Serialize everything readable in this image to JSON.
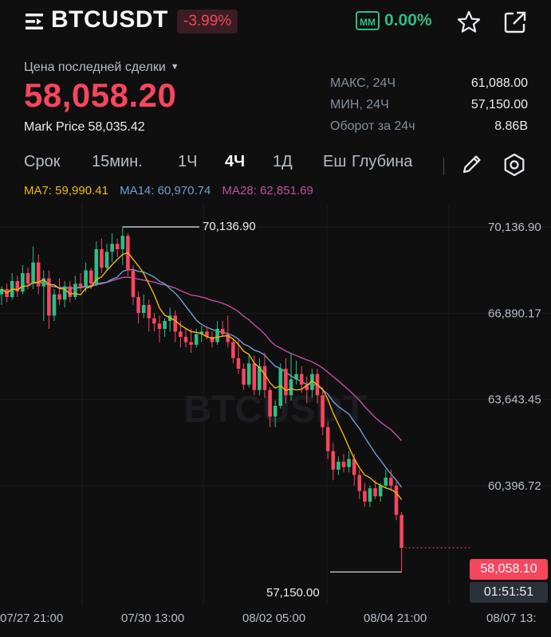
{
  "header": {
    "symbol": "BTCUSDT",
    "change": "-3.99%",
    "mm_badge": "MM",
    "mm_value": "0.00%"
  },
  "price": {
    "last_label": "Цена последней сделки",
    "last_price": "58,058.20",
    "mark_label": "Mark Price",
    "mark_value": "58,035.42"
  },
  "stats": [
    {
      "label": "МАКС, 24Ч",
      "value": "61,088.00"
    },
    {
      "label": "МИН, 24Ч",
      "value": "57,150.00"
    },
    {
      "label": "Оборот за 24ч",
      "value": "8.86B"
    }
  ],
  "timeframes": {
    "period": "Срок",
    "m15": "15мин.",
    "h1": "1Ч",
    "h4": "4Ч",
    "d1": "1Д",
    "more": "Еш",
    "depth": "Глубина",
    "active": "4Ч"
  },
  "ma": {
    "ma7": "MA7: 59,990.41",
    "ma14": "MA14: 60,970.74",
    "ma28": "MA28: 62,851.69",
    "ma7_color": "#f0b90b",
    "ma14_color": "#6c9fd1",
    "ma28_color": "#c2509e"
  },
  "chart": {
    "watermark": "BTCUSDT",
    "y_ticks": [
      "70,136.90",
      "66,890.17",
      "63,643.45",
      "60,396.72"
    ],
    "x_ticks": [
      "07/27 21:00",
      "07/30 13:00",
      "08/02 05:00",
      "08/04 21:00",
      "08/07 13:"
    ],
    "high_annotation": "70,136.90",
    "low_annotation": "57,150.00",
    "current_price": "58,058.10",
    "countdown": "01:51:51"
  },
  "chart_data": {
    "type": "candlestick",
    "ylim": [
      56200,
      71500
    ],
    "candles": [
      [
        67600,
        67900,
        67200,
        67800
      ],
      [
        67800,
        68000,
        67300,
        67500
      ],
      [
        67500,
        68400,
        67400,
        68100
      ],
      [
        68100,
        68300,
        67500,
        67700
      ],
      [
        67700,
        68700,
        67600,
        68400
      ],
      [
        68400,
        68600,
        67800,
        68000
      ],
      [
        68000,
        69400,
        67800,
        68800
      ],
      [
        68800,
        69100,
        67600,
        67900
      ],
      [
        67900,
        68500,
        66600,
        68200
      ],
      [
        68200,
        68500,
        66300,
        66800
      ],
      [
        66800,
        67800,
        66600,
        67600
      ],
      [
        67600,
        68200,
        67200,
        67400
      ],
      [
        67400,
        68100,
        67100,
        67900
      ],
      [
        67900,
        68100,
        67300,
        67500
      ],
      [
        67500,
        68300,
        67400,
        68000
      ],
      [
        68000,
        68400,
        67700,
        67900
      ],
      [
        67900,
        68800,
        67700,
        68500
      ],
      [
        68500,
        68600,
        67800,
        68000
      ],
      [
        68000,
        69600,
        67900,
        69300
      ],
      [
        69300,
        69700,
        68400,
        68600
      ],
      [
        68600,
        69500,
        68500,
        69200
      ],
      [
        69200,
        69900,
        68800,
        69500
      ],
      [
        69500,
        69700,
        69000,
        69300
      ],
      [
        69300,
        70137,
        68700,
        69800
      ],
      [
        69800,
        69900,
        68300,
        68500
      ],
      [
        68500,
        68700,
        67200,
        67500
      ],
      [
        67500,
        67700,
        66500,
        66900
      ],
      [
        66900,
        67600,
        66700,
        67200
      ],
      [
        67200,
        67400,
        66200,
        66700
      ],
      [
        66700,
        66900,
        66200,
        66500
      ],
      [
        66500,
        66800,
        65800,
        66300
      ],
      [
        66300,
        66700,
        66000,
        66600
      ],
      [
        66600,
        67100,
        66200,
        66800
      ],
      [
        66800,
        67000,
        65800,
        66200
      ],
      [
        66200,
        66600,
        65600,
        66000
      ],
      [
        66000,
        66300,
        65600,
        65800
      ],
      [
        65800,
        66300,
        65400,
        65700
      ],
      [
        65700,
        66300,
        65600,
        66100
      ],
      [
        66100,
        66400,
        65800,
        66200
      ],
      [
        66200,
        66400,
        65900,
        66000
      ],
      [
        66000,
        66200,
        65600,
        65800
      ],
      [
        65800,
        66600,
        65700,
        66300
      ],
      [
        66300,
        66600,
        66000,
        66100
      ],
      [
        66100,
        66800,
        65600,
        65800
      ],
      [
        65800,
        65900,
        65000,
        65200
      ],
      [
        65200,
        65900,
        64600,
        64800
      ],
      [
        64800,
        65000,
        64000,
        64200
      ],
      [
        64200,
        65300,
        64100,
        65000
      ],
      [
        65000,
        65300,
        63800,
        64000
      ],
      [
        64000,
        65200,
        63800,
        64900
      ],
      [
        64900,
        65400,
        63700,
        64000
      ],
      [
        64000,
        64100,
        62600,
        63000
      ],
      [
        63000,
        63600,
        62600,
        63400
      ],
      [
        63400,
        65000,
        63300,
        64800
      ],
      [
        64800,
        65200,
        63500,
        63800
      ],
      [
        63800,
        65400,
        63600,
        64400
      ],
      [
        64400,
        65100,
        64200,
        64600
      ],
      [
        64600,
        64900,
        63900,
        64200
      ],
      [
        64200,
        64500,
        63500,
        64000
      ],
      [
        64000,
        64800,
        63700,
        64600
      ],
      [
        64600,
        64800,
        63500,
        63800
      ],
      [
        63800,
        64100,
        62300,
        62600
      ],
      [
        62600,
        62800,
        61400,
        61700
      ],
      [
        61700,
        62000,
        60600,
        61000
      ],
      [
        61000,
        61500,
        60800,
        61300
      ],
      [
        61300,
        61600,
        60900,
        61100
      ],
      [
        61100,
        61700,
        60900,
        61400
      ],
      [
        61400,
        61600,
        60400,
        60800
      ],
      [
        60800,
        61000,
        59900,
        60200
      ],
      [
        60200,
        60500,
        59600,
        59800
      ],
      [
        59800,
        60400,
        59600,
        60300
      ],
      [
        60300,
        60600,
        59900,
        60000
      ],
      [
        60000,
        60500,
        59800,
        60400
      ],
      [
        60400,
        61000,
        60300,
        60700
      ],
      [
        60700,
        61000,
        60200,
        60400
      ],
      [
        60400,
        60600,
        59100,
        59300
      ],
      [
        59300,
        59400,
        57150,
        58058
      ]
    ]
  }
}
